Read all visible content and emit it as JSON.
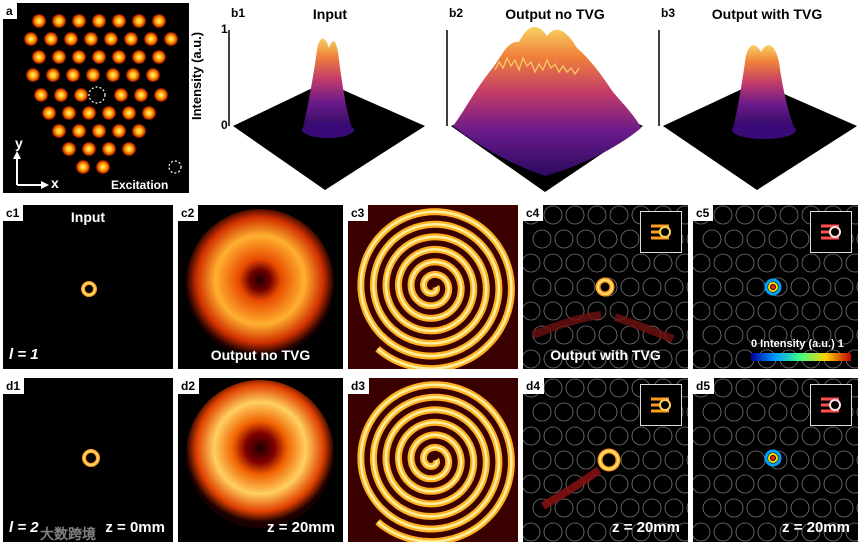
{
  "panel_a": {
    "tag": "a",
    "axis_y": "y",
    "axis_x": "x",
    "excitation_label": "Excitation"
  },
  "panel_b": {
    "b1": {
      "tag": "b1",
      "title": "Input"
    },
    "b2": {
      "tag": "b2",
      "title": "Output no TVG"
    },
    "b3": {
      "tag": "b3",
      "title": "Output with TVG"
    },
    "ylabel": "Intensity (a.u.)",
    "ytick_top": "1",
    "ytick_bottom": "0"
  },
  "row_c": {
    "c1": {
      "tag": "c1",
      "title": "Input",
      "bottom_left": "l = 1"
    },
    "c2": {
      "tag": "c2",
      "bottom_center": "Output no TVG"
    },
    "c3": {
      "tag": "c3"
    },
    "c4": {
      "tag": "c4",
      "bottom_center": "Output with TVG"
    },
    "c5": {
      "tag": "c5",
      "colorbar_label": "0 Intensity (a.u.) 1"
    }
  },
  "row_d": {
    "d1": {
      "tag": "d1",
      "bottom_left": "l = 2",
      "bottom_right": "z = 0mm"
    },
    "d2": {
      "tag": "d2",
      "bottom_right": "z = 20mm"
    },
    "d3": {
      "tag": "d3"
    },
    "d4": {
      "tag": "d4",
      "bottom_right": "z = 20mm"
    },
    "d5": {
      "tag": "d5",
      "bottom_right": "z = 20mm"
    }
  },
  "watermark": "大数跨境",
  "colors": {
    "hot_bright": "#ffe680",
    "hot_mid": "#ff7a00",
    "hot_dark": "#8a0000",
    "plasma_top": "#f0c040",
    "plasma_mid": "#b0306a",
    "plasma_low": "#3a0a78"
  }
}
